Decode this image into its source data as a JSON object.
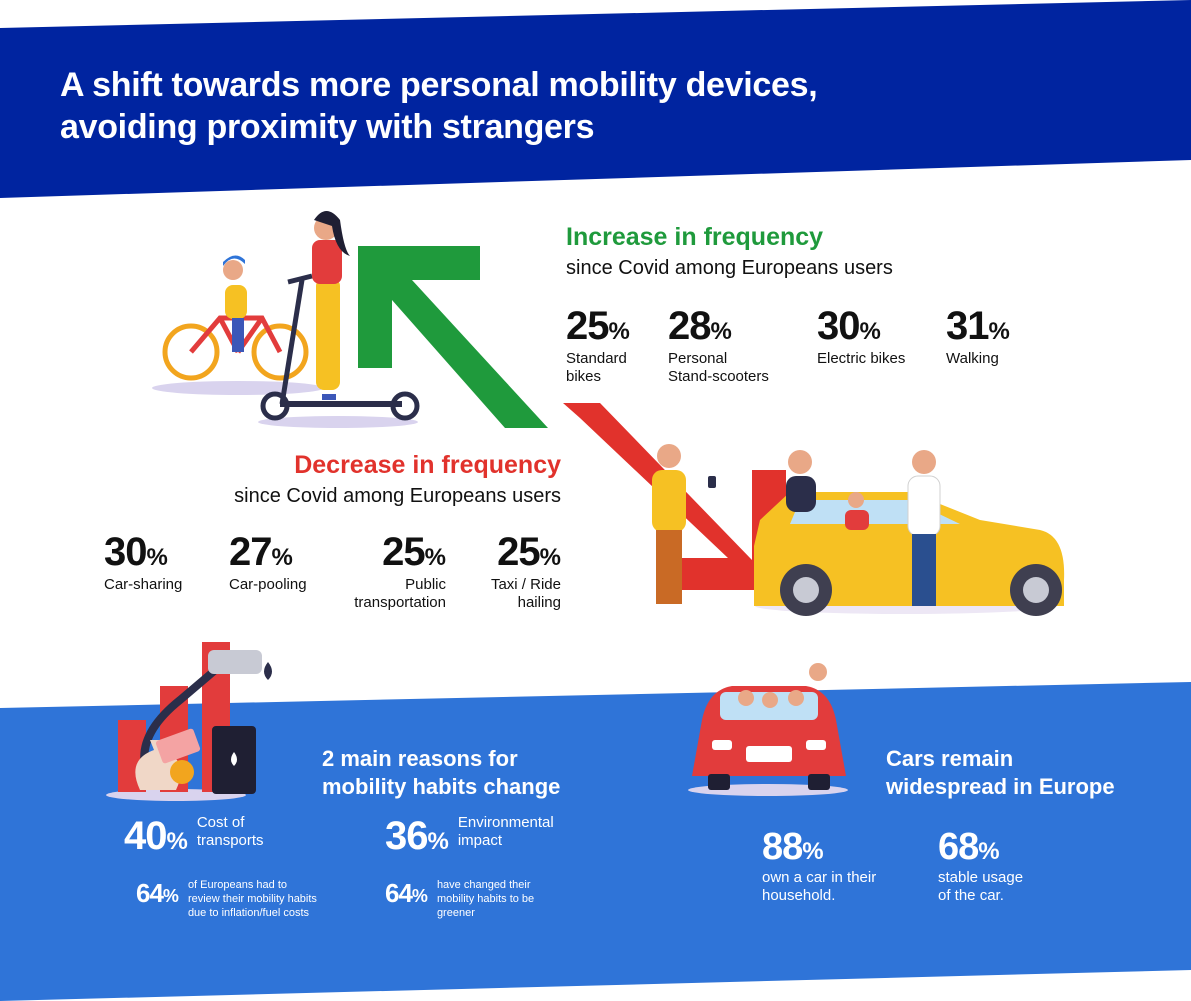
{
  "header": {
    "title_line1": "A shift towards more personal mobility devices,",
    "title_line2": "avoiding proximity with strangers"
  },
  "increase": {
    "heading": "Increase in frequency",
    "subheading": "since Covid among Europeans users",
    "stats": [
      {
        "value": "25",
        "unit": "%",
        "label_line1": "Standard",
        "label_line2": "bikes"
      },
      {
        "value": "28",
        "unit": "%",
        "label_line1": "Personal",
        "label_line2": "Stand-scooters"
      },
      {
        "value": "30",
        "unit": "%",
        "label_line1": "Electric bikes",
        "label_line2": ""
      },
      {
        "value": "31",
        "unit": "%",
        "label_line1": "Walking",
        "label_line2": ""
      }
    ]
  },
  "decrease": {
    "heading": "Decrease in frequency",
    "subheading": "since Covid among Europeans users",
    "stats": [
      {
        "value": "30",
        "unit": "%",
        "label_line1": "Car-sharing",
        "label_line2": ""
      },
      {
        "value": "27",
        "unit": "%",
        "label_line1": "Car-pooling",
        "label_line2": ""
      },
      {
        "value": "25",
        "unit": "%",
        "label_line1": "Public",
        "label_line2": "transportation"
      },
      {
        "value": "25",
        "unit": "%",
        "label_line1": "Taxi / Ride",
        "label_line2": "hailing"
      }
    ]
  },
  "reasons": {
    "title_line1": "2 main reasons for",
    "title_line2": "mobility habits change",
    "cost": {
      "value": "40",
      "unit": "%",
      "label_line1": "Cost of",
      "label_line2": "transports"
    },
    "env": {
      "value": "36",
      "unit": "%",
      "label_line1": "Environmental",
      "label_line2": "impact"
    },
    "cost_detail": {
      "value": "64",
      "unit": "%",
      "label_line1": "of Europeans had to",
      "label_line2": "review their mobility habits",
      "label_line3": "due to inflation/fuel costs"
    },
    "env_detail": {
      "value": "64",
      "unit": "%",
      "label_line1": "have changed their",
      "label_line2": "mobility habits to be",
      "label_line3": "greener"
    }
  },
  "cars": {
    "title_line1": "Cars remain",
    "title_line2": "widespread in Europe",
    "own": {
      "value": "88",
      "unit": "%",
      "label_line1": "own a car in their",
      "label_line2": "household."
    },
    "stable": {
      "value": "68",
      "unit": "%",
      "label_line1": "stable usage",
      "label_line2": "of the car."
    }
  },
  "colors": {
    "header_blue": "#0024a0",
    "bottom_blue": "#2f74d8",
    "increase_green": "#1f9a3c",
    "decrease_red": "#e1322c",
    "car_yellow": "#f6c123"
  },
  "icons": [
    "bicycle-icon",
    "scooter-icon",
    "green-arrow-up-icon",
    "red-arrow-down-icon",
    "yellow-car-icon",
    "fuel-pump-icon",
    "oil-barrel-icon",
    "money-bag-icon",
    "red-convertible-car-icon"
  ]
}
